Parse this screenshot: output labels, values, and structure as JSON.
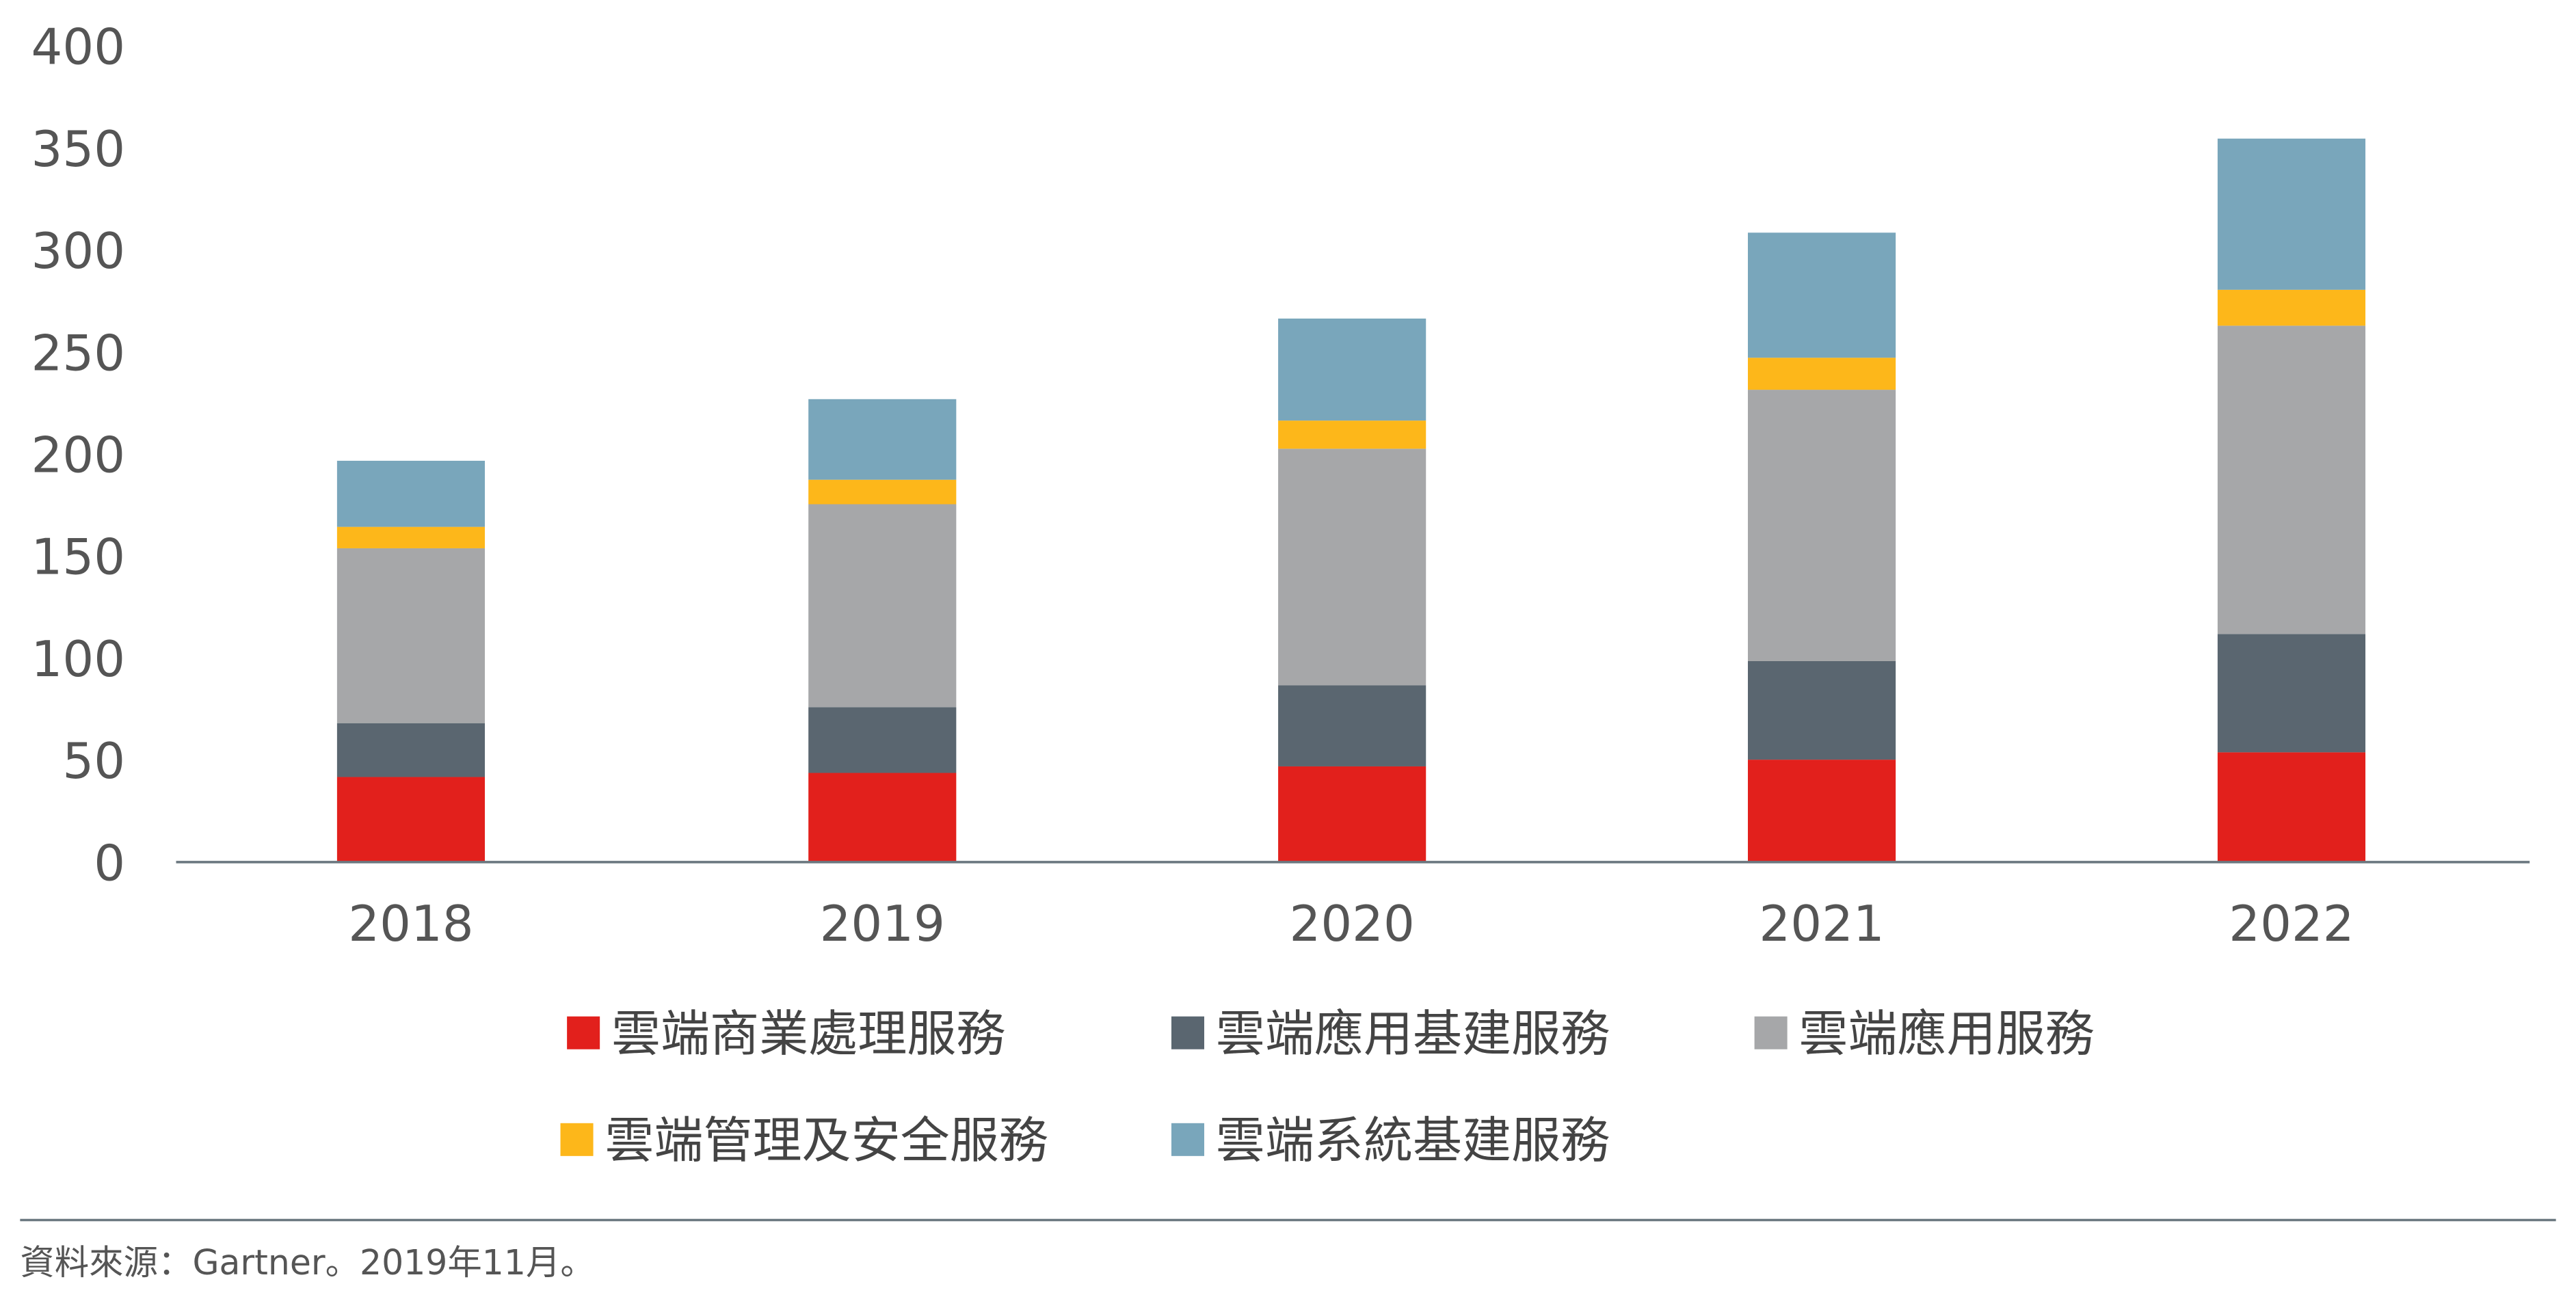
{
  "chart_data": {
    "type": "bar",
    "stacked": true,
    "categories": [
      "2018",
      "2019",
      "2020",
      "2021",
      "2022"
    ],
    "ylim": [
      0,
      400
    ],
    "yticks": [
      "0",
      "50",
      "100",
      "150",
      "200",
      "250",
      "300",
      "350",
      "400"
    ],
    "grid": false,
    "legend_position": "bottom",
    "series": [
      {
        "name": "雲端商業處理服務",
        "color": "#e2201c",
        "values": [
          41.7,
          43.7,
          46.9,
          50.2,
          53.8
        ]
      },
      {
        "name": "雲端應用基建服務",
        "color": "#5a6670",
        "values": [
          26.4,
          32.2,
          39.7,
          48.3,
          58.0
        ]
      },
      {
        "name": "雲端應用服務",
        "color": "#a6a7a9",
        "values": [
          85.7,
          99.5,
          116.0,
          133.0,
          151.1
        ]
      },
      {
        "name": "雲端管理及安全服務",
        "color": "#fdb71a",
        "values": [
          10.5,
          12.0,
          13.8,
          15.7,
          17.6
        ]
      },
      {
        "name": "雲端系統基建服務",
        "color": "#79a6bb",
        "values": [
          32.4,
          39.5,
          50.0,
          61.3,
          74.1
        ]
      }
    ]
  },
  "source": "資料來源：Gartner。2019年11月。"
}
